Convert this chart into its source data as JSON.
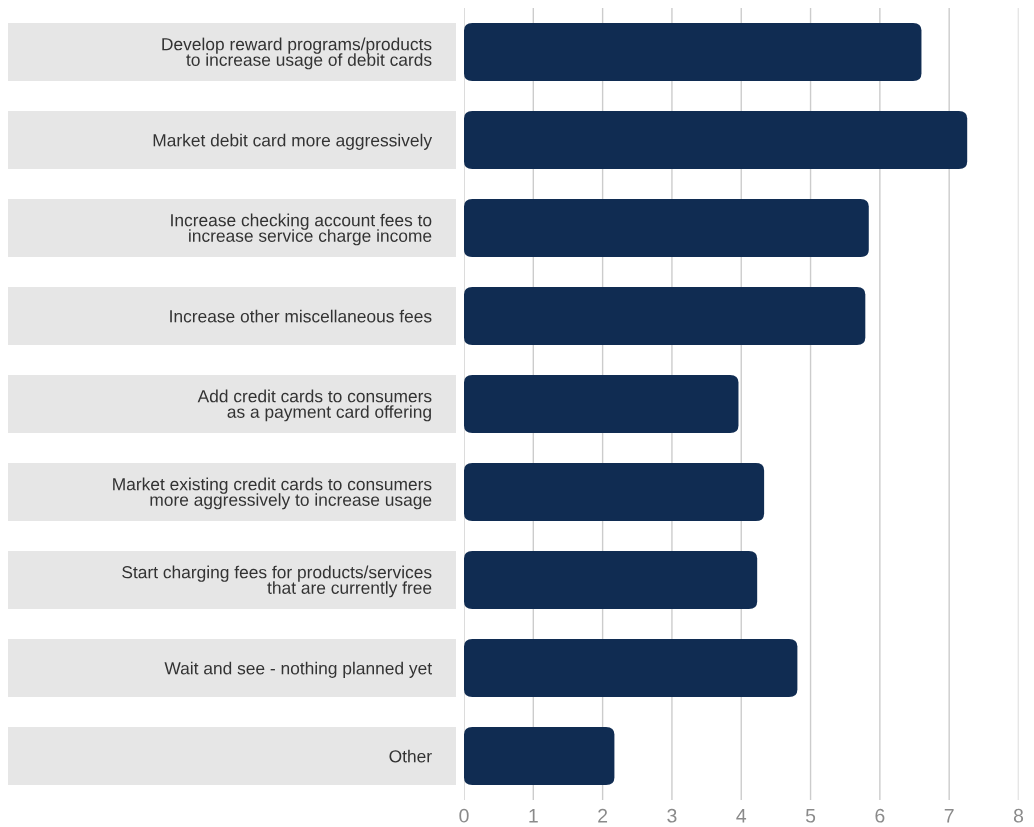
{
  "chart_data": {
    "type": "bar",
    "orientation": "horizontal",
    "categories": [
      "Develop reward programs/products\nto increase usage of debit cards",
      "Market debit card more aggressively",
      "Increase checking account fees to\nincrease service charge income",
      "Increase other miscellaneous fees",
      "Add credit cards to consumers\nas a payment card offering",
      "Market existing credit cards to consumers\nmore aggressively to increase usage",
      "Start charging fees for products/services\nthat are currently free",
      "Wait and see - nothing planned yet",
      "Other"
    ],
    "values": [
      6.6,
      7.26,
      5.84,
      5.79,
      3.96,
      4.33,
      4.23,
      4.81,
      2.17
    ],
    "color": "#102c52",
    "xlim": [
      0,
      8
    ],
    "xticks": [
      0,
      1,
      2,
      3,
      4,
      5,
      6,
      7,
      8
    ],
    "grid": "x"
  }
}
